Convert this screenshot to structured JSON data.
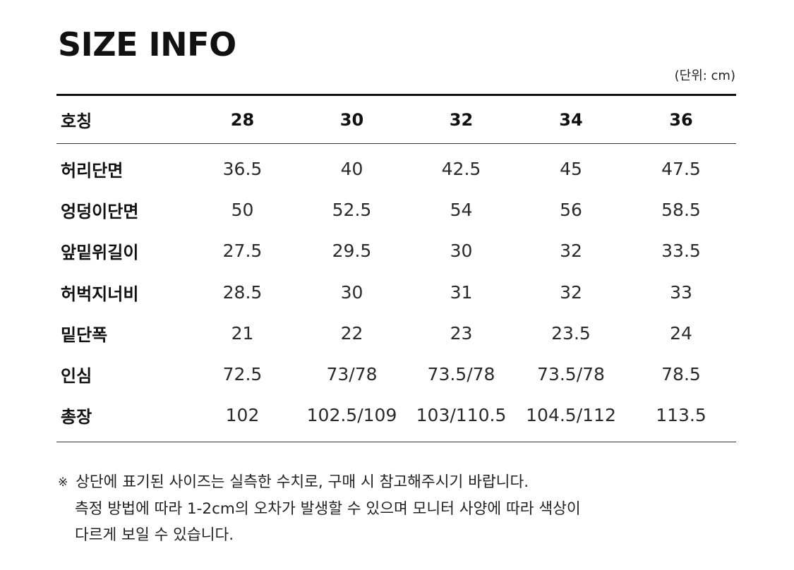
{
  "title": "SIZE INFO",
  "unit_label": "(단위: cm)",
  "table": {
    "header": {
      "label": "호칭",
      "sizes": [
        "28",
        "30",
        "32",
        "34",
        "36"
      ]
    },
    "rows": [
      {
        "label": "허리단면",
        "values": [
          "36.5",
          "40",
          "42.5",
          "45",
          "47.5"
        ]
      },
      {
        "label": "엉덩이단면",
        "values": [
          "50",
          "52.5",
          "54",
          "56",
          "58.5"
        ]
      },
      {
        "label": "앞밑위길이",
        "values": [
          "27.5",
          "29.5",
          "30",
          "32",
          "33.5"
        ]
      },
      {
        "label": "허벅지너비",
        "values": [
          "28.5",
          "30",
          "31",
          "32",
          "33"
        ]
      },
      {
        "label": "밑단폭",
        "values": [
          "21",
          "22",
          "23",
          "23.5",
          "24"
        ]
      },
      {
        "label": "인심",
        "values": [
          "72.5",
          "73/78",
          "73.5/78",
          "73.5/78",
          "78.5"
        ]
      },
      {
        "label": "총장",
        "values": [
          "102",
          "102.5/109",
          "103/110.5",
          "104.5/112",
          "113.5"
        ]
      }
    ]
  },
  "notes": {
    "mark": "※",
    "line1": "상단에 표기된 사이즈는 실측한 수치로, 구매 시 참고해주시기 바랍니다.",
    "line2": "측정 방법에 따라 1-2cm의 오차가 발생할 수 있으며 모니터 사양에 따라 색상이",
    "line3": "다르게 보일 수 있습니다."
  }
}
